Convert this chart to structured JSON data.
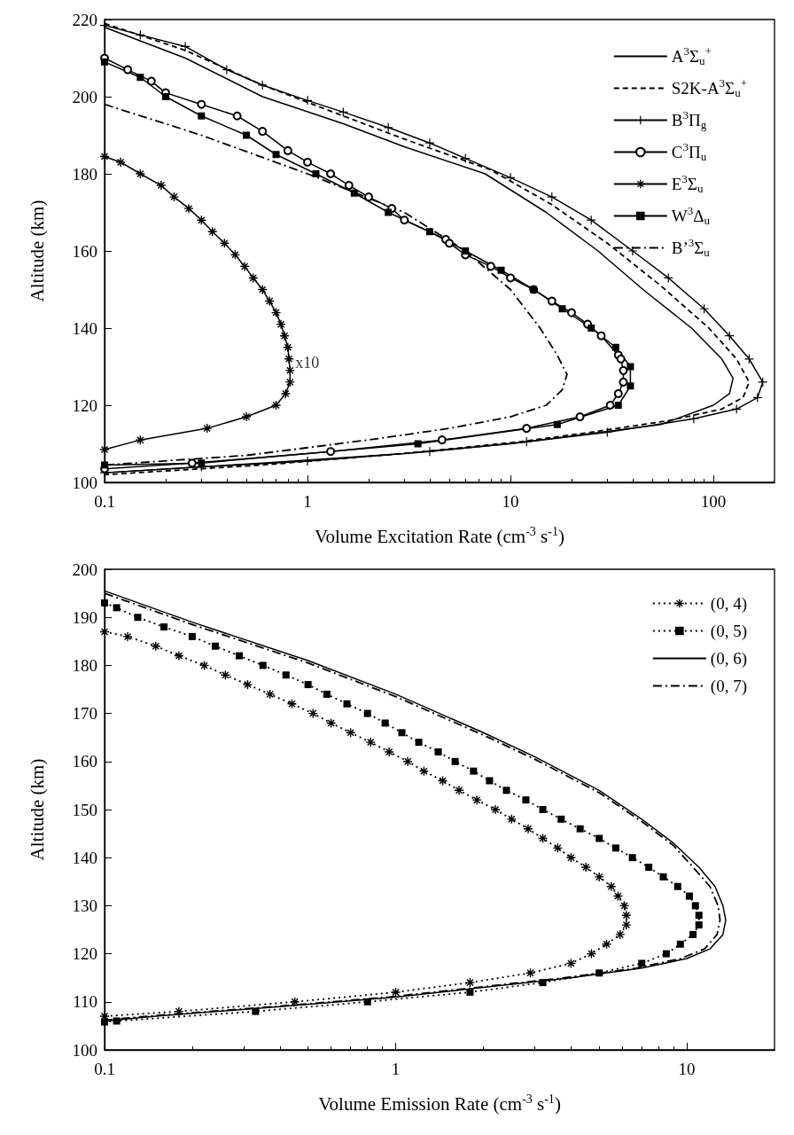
{
  "chart_data": [
    {
      "type": "line",
      "xlabel": "Volume Excitation Rate (cm$^{-3}$ s$^{-1}$)",
      "ylabel": "Altitude (km)",
      "log": "x",
      "grid": false,
      "legend": "top right",
      "xlim": [
        0.1,
        200
      ],
      "xticks": [
        0.1,
        1,
        10,
        100
      ],
      "ylim": [
        100,
        220
      ],
      "yticks": [
        100,
        120,
        140,
        160,
        180,
        200,
        220
      ],
      "annotations": [
        {
          "text": "x10",
          "x": 0.82,
          "y": 131
        }
      ],
      "series": [
        {
          "name": "A$^{3}$Σ$_{u}$$^{+}$",
          "color": "#000000",
          "marker": "none",
          "line_style": "solid",
          "x": [
            0.1,
            0.25,
            0.6,
            1.5,
            3,
            7.5,
            15,
            27,
            45,
            78,
            110,
            125,
            120,
            100,
            55,
            20,
            10,
            3,
            0.6,
            0.1
          ],
          "values": [
            218,
            210,
            200,
            193,
            187,
            180,
            170,
            160,
            150,
            140,
            132,
            127,
            123,
            120,
            115,
            112,
            110,
            107.5,
            105,
            102.5
          ]
        },
        {
          "name": "S2K-A$^{3}$Σ$_{u}$$^{+}$",
          "color": "#000000",
          "marker": "none",
          "line_style": "dashed",
          "x": [
            0.1,
            0.25,
            0.6,
            1.5,
            3,
            8,
            16,
            30,
            55,
            95,
            130,
            150,
            140,
            110,
            60,
            25,
            11,
            3,
            0.6,
            0.1
          ],
          "values": [
            219,
            212,
            203,
            195,
            189,
            181,
            172,
            162,
            151,
            140,
            132,
            126,
            122,
            119,
            116,
            113,
            110.5,
            107.5,
            104.5,
            102
          ]
        },
        {
          "name": "B$^{3}$Π$_{g}$",
          "color": "#000000",
          "marker": "cross",
          "line_style": "solid",
          "x": [
            0.1,
            0.15,
            0.25,
            0.4,
            0.6,
            1,
            1.5,
            2.5,
            4,
            6,
            10,
            16,
            25,
            40,
            60,
            90,
            120,
            150,
            175,
            165,
            130,
            80,
            30,
            12,
            4,
            1,
            0.3,
            0.1
          ],
          "values": [
            218.5,
            216,
            213,
            207,
            203,
            199,
            196,
            192,
            188,
            184,
            179,
            174,
            168,
            160,
            153,
            145,
            138,
            132,
            126,
            122,
            119,
            116.5,
            113,
            110.5,
            108,
            105.5,
            104,
            102.5
          ]
        },
        {
          "name": "C$^{3}$Π$_{u}$",
          "color": "#000000",
          "marker": "circle",
          "line_style": "solid",
          "x": [
            0.1,
            0.13,
            0.17,
            0.2,
            0.3,
            0.45,
            0.6,
            0.8,
            1,
            1.3,
            1.6,
            2,
            2.6,
            3,
            4.8,
            5,
            6,
            8,
            10,
            13,
            16,
            20,
            24,
            28,
            34,
            35,
            36,
            36,
            34,
            31,
            22,
            12,
            4.6,
            1.3,
            0.27,
            0.1
          ],
          "values": [
            210,
            207,
            204,
            201,
            198,
            195,
            191,
            186,
            183,
            180,
            177,
            174,
            171,
            168,
            163,
            162,
            159,
            156,
            153,
            150,
            147,
            144,
            141,
            138,
            133,
            132,
            129,
            126,
            123,
            120,
            117,
            114,
            111,
            108,
            105,
            103.5
          ]
        },
        {
          "name": "E$^{3}$Σ$_{u}$",
          "color": "#000000",
          "marker": "star",
          "line_style": "solid",
          "x": [
            0.1,
            0.12,
            0.15,
            0.19,
            0.22,
            0.26,
            0.3,
            0.34,
            0.39,
            0.44,
            0.49,
            0.54,
            0.6,
            0.65,
            0.7,
            0.74,
            0.77,
            0.8,
            0.81,
            0.82,
            0.82,
            0.78,
            0.7,
            0.5,
            0.32,
            0.15,
            0.1
          ],
          "values": [
            184.5,
            183,
            180,
            177,
            174,
            171,
            168,
            165,
            162,
            159,
            156,
            153,
            150,
            147,
            144,
            141,
            138,
            135,
            132,
            129,
            126,
            123,
            120,
            117,
            114,
            111,
            108.5
          ]
        },
        {
          "name": "W$^{3}$Δ$_{u}$",
          "color": "#000000",
          "marker": "square",
          "line_style": "solid",
          "x": [
            0.1,
            0.15,
            0.2,
            0.3,
            0.5,
            0.7,
            1.1,
            1.7,
            2.5,
            4,
            6,
            9,
            13,
            18,
            25,
            33,
            39,
            39,
            34,
            17,
            3.5,
            0.3,
            0.1
          ],
          "values": [
            209,
            205,
            200,
            195,
            190,
            185,
            180,
            175,
            170,
            165,
            160,
            155,
            150,
            145,
            140,
            135,
            130,
            125,
            120,
            115,
            110,
            105,
            104.5
          ]
        },
        {
          "name": "B’$^{3}$Σ$_{u}$",
          "color": "#000000",
          "marker": "none",
          "line_style": "dashdot",
          "x": [
            0.1,
            0.3,
            1,
            3,
            6,
            10,
            14,
            17,
            19,
            18,
            15,
            10,
            5,
            2,
            0.5,
            0.1
          ],
          "values": [
            198,
            190,
            180,
            170,
            160,
            150,
            140,
            133,
            128,
            124,
            120,
            117,
            114,
            111,
            107,
            104.5
          ]
        }
      ]
    },
    {
      "type": "line",
      "xlabel": "Volume Emission Rate (cm$^{-3}$ s$^{-1}$)",
      "ylabel": "Altitude (km)",
      "log": "x",
      "grid": false,
      "legend": "top right",
      "xlim": [
        0.1,
        20
      ],
      "xticks": [
        0.1,
        1,
        10
      ],
      "ylim": [
        100,
        200
      ],
      "yticks": [
        100,
        110,
        120,
        130,
        140,
        150,
        160,
        170,
        180,
        190,
        200
      ],
      "series": [
        {
          "name": "(0, 4)",
          "color": "#000000",
          "marker": "star",
          "line_style": "dotted",
          "x": [
            0.1,
            0.12,
            0.15,
            0.18,
            0.22,
            0.26,
            0.31,
            0.37,
            0.44,
            0.52,
            0.6,
            0.7,
            0.82,
            0.95,
            1.1,
            1.25,
            1.45,
            1.65,
            1.9,
            2.2,
            2.5,
            2.85,
            3.2,
            3.6,
            4,
            4.5,
            5,
            5.5,
            5.8,
            6.1,
            6.2,
            6.2,
            5.9,
            5.3,
            4.7,
            4,
            2.9,
            1.8,
            1,
            0.45,
            0.18,
            0.1
          ],
          "values": [
            187,
            186,
            184,
            182,
            180,
            178,
            176,
            174,
            172,
            170,
            168,
            166,
            164,
            162,
            160,
            158,
            156,
            154,
            152,
            150,
            148,
            146,
            144,
            142,
            140,
            138,
            136,
            134,
            132,
            130,
            128,
            126,
            124,
            122,
            120,
            118,
            116,
            114,
            112,
            110,
            108,
            107
          ]
        },
        {
          "name": "(0, 5)",
          "color": "#000000",
          "marker": "square",
          "line_style": "dotted",
          "x": [
            0.1,
            0.11,
            0.13,
            0.16,
            0.2,
            0.24,
            0.29,
            0.35,
            0.42,
            0.5,
            0.58,
            0.68,
            0.8,
            0.92,
            1.05,
            1.2,
            1.4,
            1.6,
            1.85,
            2.1,
            2.4,
            2.8,
            3.2,
            3.7,
            4.3,
            5,
            5.7,
            6.5,
            7.4,
            8.3,
            9.3,
            10.2,
            10.7,
            11,
            11,
            10.5,
            9.5,
            8.5,
            7,
            5,
            3.2,
            1.8,
            0.8,
            0.33,
            0.11,
            0.1
          ],
          "values": [
            193,
            192,
            190,
            188,
            186,
            184,
            182,
            180,
            178,
            176,
            174,
            172,
            170,
            168,
            166,
            164,
            162,
            160,
            158,
            156,
            154,
            152,
            150,
            148,
            146,
            144,
            142,
            140,
            138,
            136,
            134,
            132,
            130,
            128,
            126,
            124,
            122,
            120,
            118,
            116,
            114,
            112,
            110,
            108,
            106,
            105.8
          ]
        },
        {
          "name": "(0, 6)",
          "color": "#000000",
          "marker": "none",
          "line_style": "solid",
          "x": [
            0.1,
            0.2,
            0.5,
            1,
            2,
            3,
            5,
            7,
            9,
            11,
            12.5,
            13.3,
            13.6,
            13.3,
            12,
            10,
            7,
            4,
            2,
            1,
            0.4,
            0.15,
            0.1
          ],
          "values": [
            195.5,
            189,
            181,
            174,
            166,
            161,
            154,
            148,
            143,
            138,
            134,
            130,
            127,
            124,
            121,
            119,
            117,
            115,
            113,
            111,
            109,
            107,
            106
          ]
        },
        {
          "name": "(0, 7)",
          "color": "#000000",
          "marker": "none",
          "line_style": "dashdot",
          "x": [
            0.1,
            0.2,
            0.5,
            1,
            2,
            3,
            5,
            7,
            9,
            10.5,
            12,
            12.8,
            13,
            12.7,
            11.5,
            9.5,
            6.7,
            3.8,
            1.9,
            0.95,
            0.38,
            0.14,
            0.1
          ],
          "values": [
            195,
            188.5,
            180.5,
            173.5,
            165.5,
            160.5,
            153.5,
            147.5,
            142.5,
            138,
            134,
            130,
            127,
            124,
            121,
            119,
            117,
            115,
            113,
            111,
            109,
            107,
            106.2
          ]
        }
      ]
    }
  ]
}
